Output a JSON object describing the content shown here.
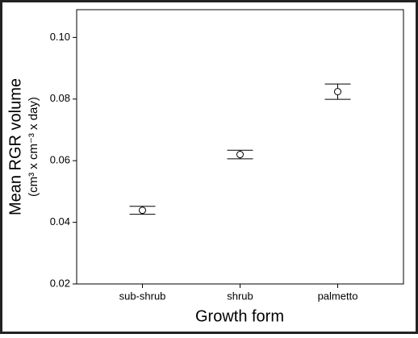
{
  "chart_data": {
    "type": "errorbar",
    "xlabel": "Growth form",
    "ylabel": "Mean RGR volume",
    "ylabel_units": "(cm³ x cm⁻³ x day)",
    "categories": [
      "sub-shrub",
      "shrub",
      "palmetto"
    ],
    "values": [
      0.0439,
      0.062,
      0.0824
    ],
    "errors": [
      0.0013,
      0.0014,
      0.0025
    ],
    "color": "#000000",
    "ylim": [
      0.02,
      0.109
    ],
    "yticks": [
      0.02,
      0.04,
      0.06,
      0.08,
      {
        "value": 0.1,
        "label": "0.10"
      }
    ]
  }
}
